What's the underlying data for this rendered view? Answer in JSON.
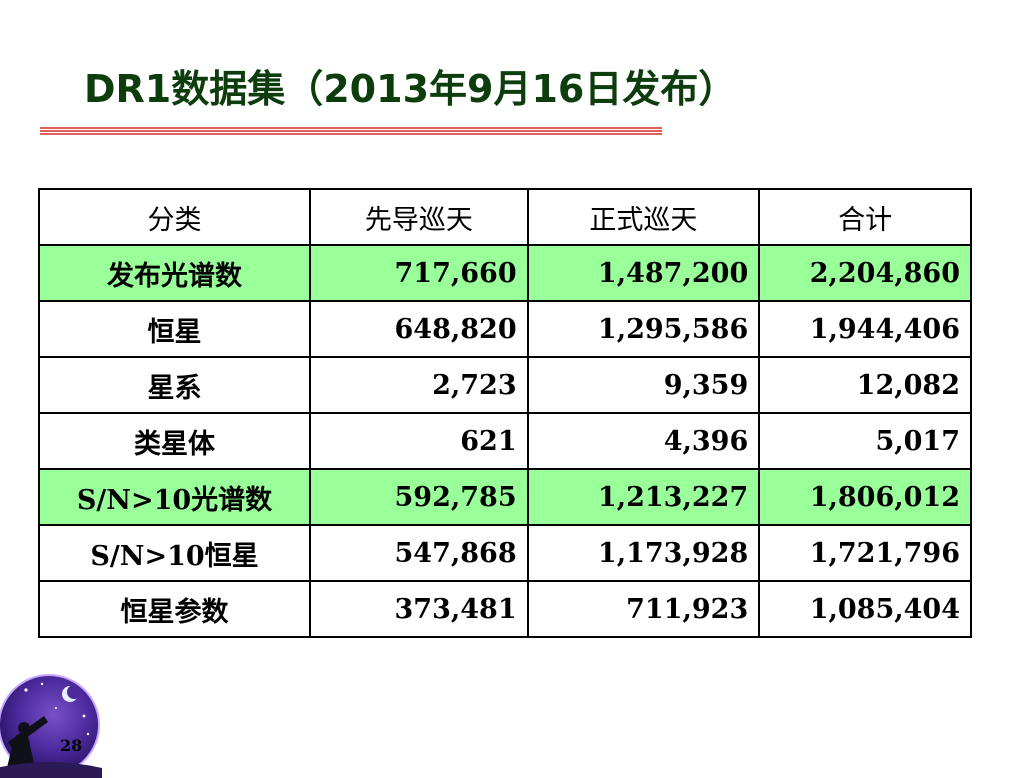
{
  "slide": {
    "title": "DR1数据集（2013年9月16日发布）",
    "page_number": "28"
  },
  "colors": {
    "title": "#0d3d0d",
    "rule": "#e06060",
    "highlight_row": "#99ff99"
  },
  "table": {
    "headers": [
      "分类",
      "先导巡天",
      "正式巡天",
      "合计"
    ],
    "rows": [
      {
        "label": "发布光谱数",
        "values": [
          "717,660",
          "1,487,200",
          "2,204,860"
        ],
        "highlight": true
      },
      {
        "label": "恒星",
        "values": [
          "648,820",
          "1,295,586",
          "1,944,406"
        ],
        "highlight": false
      },
      {
        "label": "星系",
        "values": [
          "2,723",
          "9,359",
          "12,082"
        ],
        "highlight": false
      },
      {
        "label": "类星体",
        "values": [
          "621",
          "4,396",
          "5,017"
        ],
        "highlight": false
      },
      {
        "label": "S/N>10光谱数",
        "values": [
          "592,785",
          "1,213,227",
          "1,806,012"
        ],
        "highlight": true
      },
      {
        "label": "S/N>10恒星",
        "values": [
          "547,868",
          "1,173,928",
          "1,721,796"
        ],
        "highlight": false
      },
      {
        "label": "恒星参数",
        "values": [
          "373,481",
          "711,923",
          "1,085,404"
        ],
        "highlight": false
      }
    ]
  },
  "logo": {
    "icon": "stargazer-telescope-icon"
  }
}
